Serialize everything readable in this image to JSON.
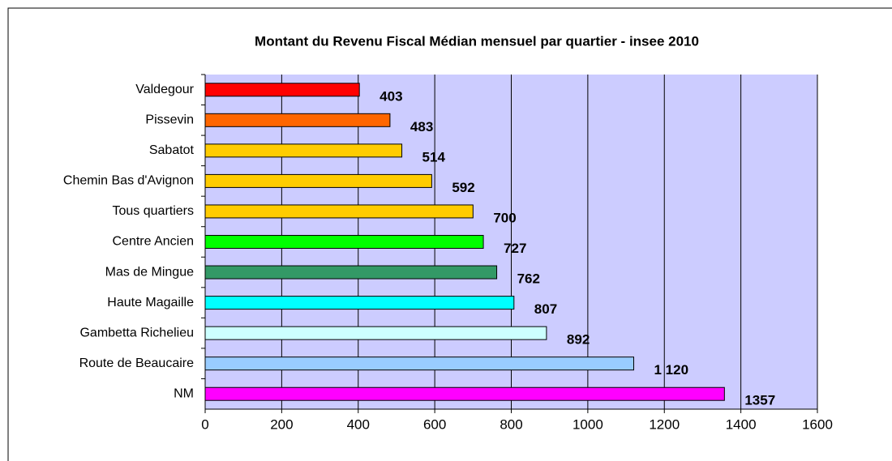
{
  "chart_data": {
    "type": "bar",
    "orientation": "horizontal",
    "title": "Montant du Revenu Fiscal Médian mensuel par quartier - insee 2010",
    "categories": [
      "Valdegour",
      "Pissevin",
      "Sabatot",
      "Chemin Bas d'Avignon",
      "Tous quartiers",
      "Centre Ancien",
      "Mas de Mingue",
      "Haute Magaille",
      "Gambetta Richelieu",
      "Route de Beaucaire",
      "NM"
    ],
    "values": [
      403,
      483,
      514,
      592,
      700,
      727,
      762,
      807,
      892,
      1120,
      1357
    ],
    "value_labels": [
      "403",
      "483",
      "514",
      "592",
      "700",
      "727",
      "762",
      "807",
      "892",
      "1 120",
      "1357"
    ],
    "colors": [
      "#ff0000",
      "#ff6600",
      "#ffcc00",
      "#ffcc00",
      "#ffcc00",
      "#00ff00",
      "#339966",
      "#00ffff",
      "#ccffff",
      "#99ccff",
      "#ff00ff"
    ],
    "xlim": [
      0,
      1600
    ],
    "xticks": [
      0,
      200,
      400,
      600,
      800,
      1000,
      1200,
      1400,
      1600
    ],
    "grid": true
  }
}
